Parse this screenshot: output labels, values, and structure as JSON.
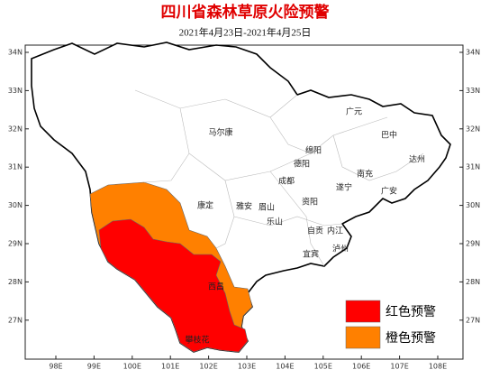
{
  "title": "四川省森林草原火险预警",
  "subtitle": "2021年4月23日-2021年4月25日",
  "lat_labels": [
    "34N",
    "33N",
    "32N",
    "31N",
    "30N",
    "29N",
    "28N",
    "27N"
  ],
  "lon_labels": [
    "98E",
    "99E",
    "100E",
    "101E",
    "102E",
    "103E",
    "104E",
    "105E",
    "106E",
    "107E",
    "108E"
  ],
  "cities": [
    "马尔康",
    "广元",
    "巴中",
    "绵阳",
    "德阳",
    "达州",
    "南充",
    "成都",
    "遂宁",
    "广安",
    "康定",
    "雅安",
    "眉山",
    "资阳",
    "乐山",
    "自贡",
    "内江",
    "宜宾",
    "泸州",
    "西昌",
    "攀枝花"
  ],
  "legend": [
    {
      "label": "红色预警",
      "color": "#ff0000"
    },
    {
      "label": "橙色预警",
      "color": "#ff8000"
    }
  ]
}
